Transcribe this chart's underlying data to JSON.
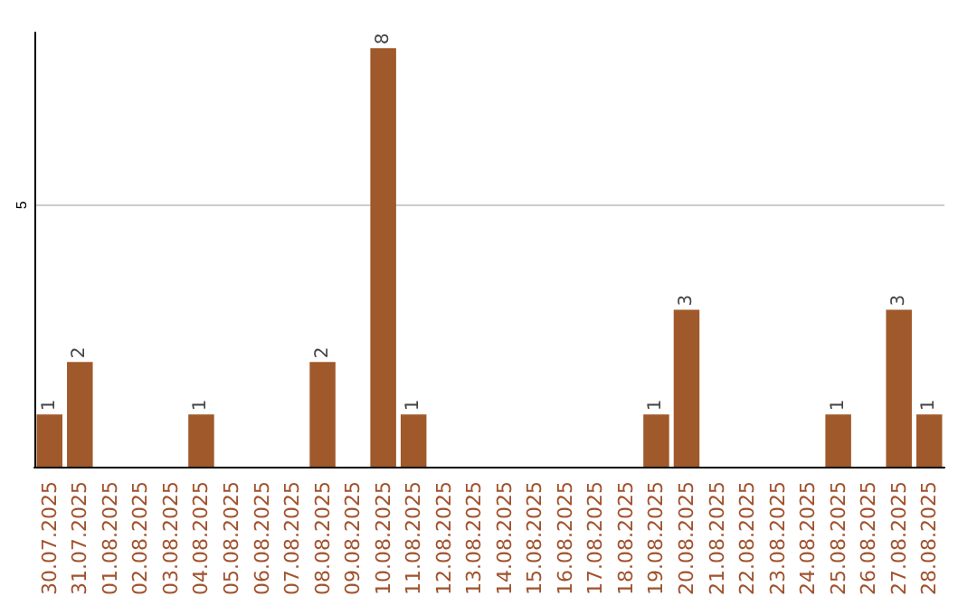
{
  "chart_data": {
    "type": "bar",
    "categories": [
      "30.07.2025",
      "31.07.2025",
      "01.08.2025",
      "02.08.2025",
      "03.08.2025",
      "04.08.2025",
      "05.08.2025",
      "06.08.2025",
      "07.08.2025",
      "08.08.2025",
      "09.08.2025",
      "10.08.2025",
      "11.08.2025",
      "12.08.2025",
      "13.08.2025",
      "14.08.2025",
      "15.08.2025",
      "16.08.2025",
      "17.08.2025",
      "18.08.2025",
      "19.08.2025",
      "20.08.2025",
      "21.08.2025",
      "22.08.2025",
      "23.08.2025",
      "24.08.2025",
      "25.08.2025",
      "26.08.2025",
      "27.08.2025",
      "28.08.2025"
    ],
    "values": [
      1,
      2,
      0,
      0,
      0,
      1,
      0,
      0,
      0,
      2,
      0,
      8,
      1,
      0,
      0,
      0,
      0,
      0,
      0,
      0,
      1,
      3,
      0,
      0,
      0,
      0,
      1,
      0,
      3,
      1
    ],
    "value_labels": [
      "1",
      "2",
      null,
      null,
      null,
      "1",
      null,
      null,
      null,
      "2",
      null,
      "8",
      "1",
      null,
      null,
      null,
      null,
      null,
      null,
      null,
      "1",
      "3",
      null,
      null,
      null,
      null,
      "1",
      null,
      "3",
      "1"
    ],
    "color": "#a0592a",
    "ylim": [
      0,
      8.3
    ],
    "yticks": [
      5
    ],
    "grid": "y"
  }
}
